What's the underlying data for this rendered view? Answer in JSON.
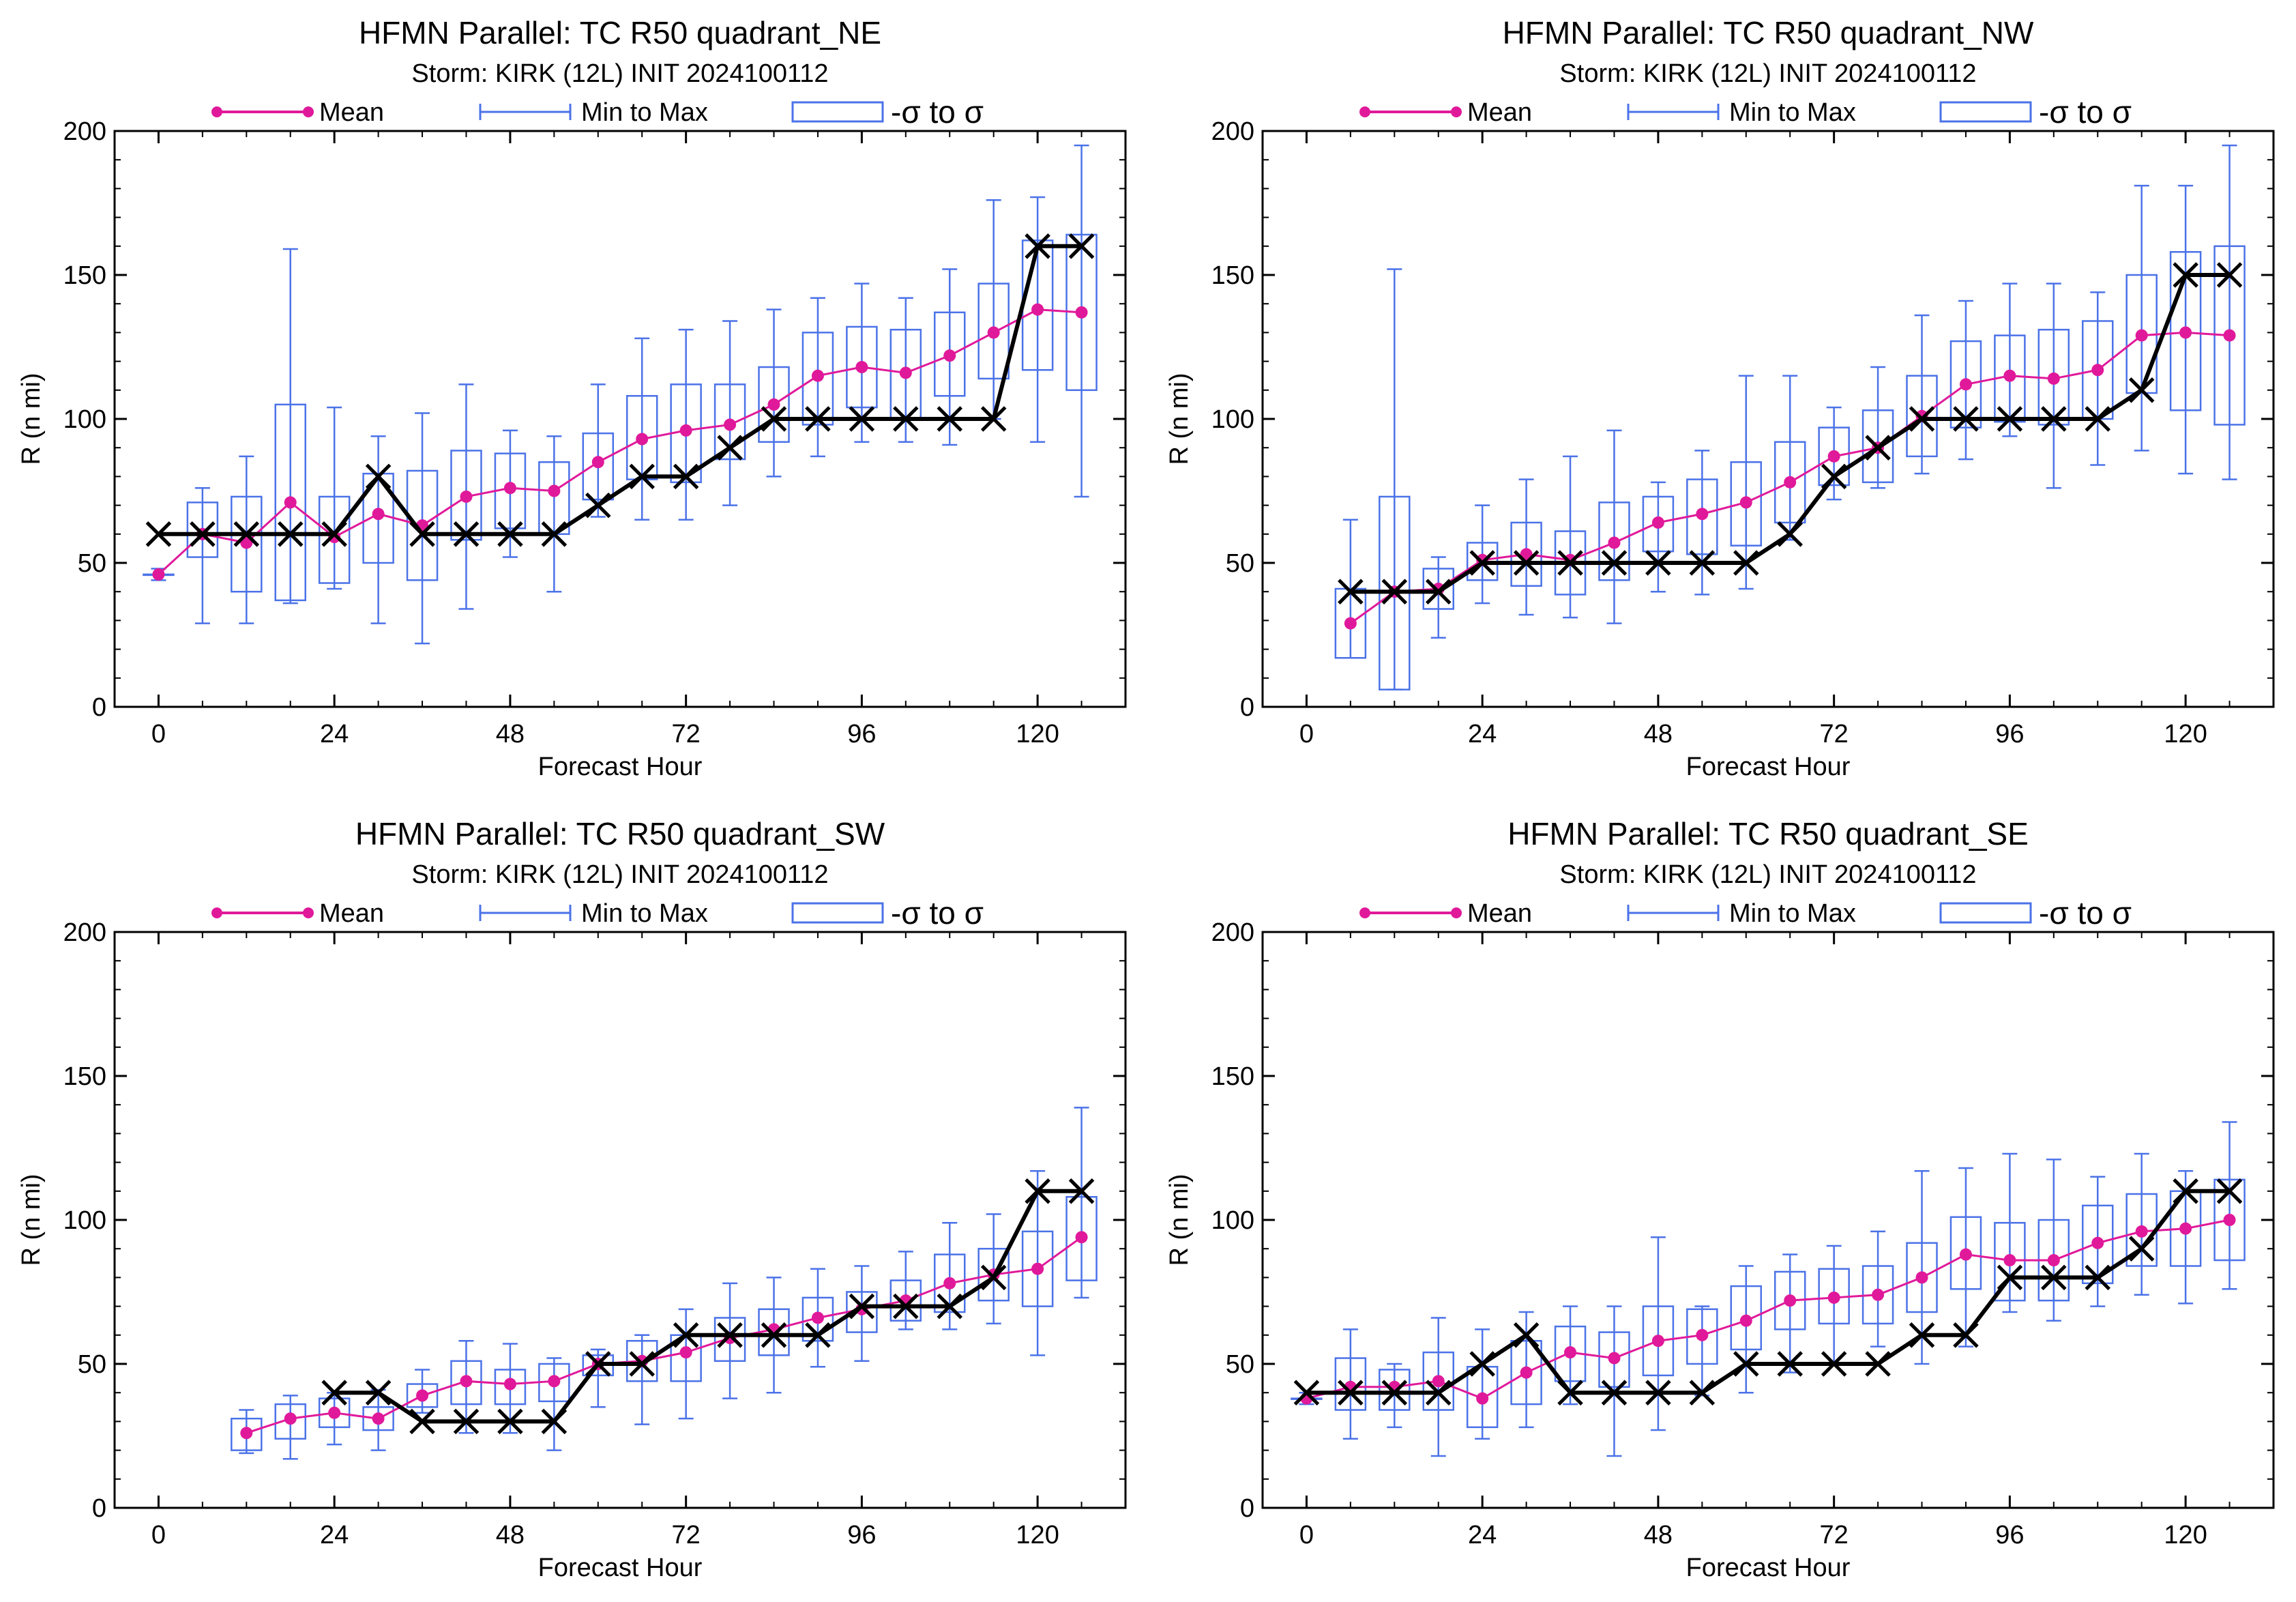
{
  "chart_data": [
    {
      "type": "box",
      "title": "HFMN Parallel: TC  R50 quadrant_NE",
      "subtitle": "Storm: KIRK (12L) INIT 2024100112",
      "xlabel": "Forecast Hour",
      "ylabel": "R (n mi)",
      "xlim": [
        -6,
        132
      ],
      "ylim": [
        0,
        200
      ],
      "xticks": [
        0,
        24,
        48,
        72,
        96,
        120
      ],
      "yticks": [
        0,
        50,
        100,
        150,
        200
      ],
      "legend": {
        "placement": "top",
        "mean": "Mean",
        "minmax": "Min to Max",
        "sigma": "-σ to σ"
      },
      "colors": {
        "mean": "#e0199a",
        "box": "#4b72e8",
        "best_track": "#000000"
      },
      "hours": [
        0,
        6,
        12,
        18,
        24,
        30,
        36,
        42,
        48,
        54,
        60,
        66,
        72,
        78,
        84,
        90,
        96,
        102,
        108,
        114,
        120,
        126
      ],
      "mean": [
        46,
        60,
        57,
        71,
        59,
        67,
        63,
        73,
        76,
        75,
        85,
        93,
        96,
        98,
        105,
        115,
        118,
        116,
        122,
        130,
        138,
        137
      ],
      "min": [
        44,
        29,
        29,
        36,
        41,
        29,
        22,
        34,
        52,
        40,
        66,
        65,
        65,
        70,
        80,
        87,
        92,
        92,
        91,
        100,
        92,
        73
      ],
      "max": [
        48,
        76,
        87,
        159,
        104,
        94,
        102,
        112,
        96,
        94,
        112,
        128,
        131,
        134,
        138,
        142,
        147,
        142,
        152,
        176,
        177,
        195
      ],
      "sigma_lo": [
        46,
        52,
        40,
        37,
        43,
        50,
        44,
        58,
        62,
        60,
        72,
        79,
        78,
        86,
        92,
        98,
        104,
        100,
        108,
        114,
        117,
        110
      ],
      "sigma_hi": [
        46,
        71,
        73,
        105,
        73,
        81,
        82,
        89,
        88,
        85,
        95,
        108,
        112,
        112,
        118,
        130,
        132,
        131,
        137,
        147,
        162,
        164
      ],
      "best_track_hours": [
        0,
        6,
        12,
        18,
        24,
        30,
        36,
        42,
        48,
        54,
        60,
        66,
        72,
        78,
        84,
        90,
        96,
        102,
        108,
        114,
        120,
        126
      ],
      "best_track": [
        60,
        60,
        60,
        60,
        60,
        80,
        60,
        60,
        60,
        60,
        70,
        80,
        80,
        90,
        100,
        100,
        100,
        100,
        100,
        100,
        160,
        160
      ]
    },
    {
      "type": "box",
      "title": "HFMN Parallel: TC  R50 quadrant_NW",
      "subtitle": "Storm: KIRK (12L) INIT 2024100112",
      "xlabel": "Forecast Hour",
      "ylabel": "R (n mi)",
      "xlim": [
        -6,
        132
      ],
      "ylim": [
        0,
        200
      ],
      "xticks": [
        0,
        24,
        48,
        72,
        96,
        120
      ],
      "yticks": [
        0,
        50,
        100,
        150,
        200
      ],
      "legend": {
        "placement": "top",
        "mean": "Mean",
        "minmax": "Min to Max",
        "sigma": "-σ to σ"
      },
      "colors": {
        "mean": "#e0199a",
        "box": "#4b72e8",
        "best_track": "#000000"
      },
      "hours": [
        6,
        12,
        18,
        24,
        30,
        36,
        42,
        48,
        54,
        60,
        66,
        72,
        78,
        84,
        90,
        96,
        102,
        108,
        114,
        120,
        126
      ],
      "mean": [
        29,
        40,
        41,
        51,
        53,
        51,
        57,
        64,
        67,
        71,
        78,
        87,
        90,
        101,
        112,
        115,
        114,
        117,
        129,
        130,
        129
      ],
      "min": [
        17,
        6,
        24,
        36,
        32,
        31,
        29,
        40,
        39,
        41,
        58,
        72,
        76,
        81,
        86,
        94,
        76,
        84,
        89,
        81,
        79
      ],
      "max": [
        65,
        152,
        52,
        70,
        79,
        87,
        96,
        78,
        89,
        115,
        115,
        104,
        118,
        136,
        141,
        147,
        147,
        144,
        181,
        181,
        195
      ],
      "sigma_lo": [
        17,
        6,
        34,
        44,
        42,
        39,
        44,
        54,
        53,
        56,
        64,
        77,
        78,
        87,
        97,
        99,
        98,
        100,
        109,
        103,
        98
      ],
      "sigma_hi": [
        41,
        73,
        48,
        57,
        64,
        61,
        71,
        73,
        79,
        85,
        92,
        97,
        103,
        115,
        127,
        129,
        131,
        134,
        150,
        158,
        160
      ],
      "best_track_hours": [
        6,
        12,
        18,
        24,
        30,
        36,
        42,
        48,
        54,
        60,
        66,
        72,
        78,
        84,
        90,
        96,
        102,
        108,
        114,
        120,
        126
      ],
      "best_track": [
        40,
        40,
        40,
        50,
        50,
        50,
        50,
        50,
        50,
        50,
        60,
        80,
        90,
        100,
        100,
        100,
        100,
        100,
        110,
        150,
        150
      ]
    },
    {
      "type": "box",
      "title": "HFMN Parallel: TC  R50 quadrant_SW",
      "subtitle": "Storm: KIRK (12L) INIT 2024100112",
      "xlabel": "Forecast Hour",
      "ylabel": "R (n mi)",
      "xlim": [
        -6,
        132
      ],
      "ylim": [
        0,
        200
      ],
      "xticks": [
        0,
        24,
        48,
        72,
        96,
        120
      ],
      "yticks": [
        0,
        50,
        100,
        150,
        200
      ],
      "legend": {
        "placement": "top",
        "mean": "Mean",
        "minmax": "Min to Max",
        "sigma": "-σ to σ"
      },
      "colors": {
        "mean": "#e0199a",
        "box": "#4b72e8",
        "best_track": "#000000"
      },
      "hours": [
        12,
        18,
        24,
        30,
        36,
        42,
        48,
        54,
        60,
        66,
        72,
        78,
        84,
        90,
        96,
        102,
        108,
        114,
        120,
        126
      ],
      "mean": [
        26,
        31,
        33,
        31,
        39,
        44,
        43,
        44,
        50,
        51,
        54,
        59,
        62,
        66,
        69,
        72,
        78,
        81,
        83,
        94
      ],
      "min": [
        19,
        17,
        22,
        20,
        33,
        26,
        26,
        20,
        35,
        29,
        31,
        38,
        40,
        49,
        51,
        62,
        62,
        64,
        53,
        73
      ],
      "max": [
        34,
        39,
        40,
        41,
        48,
        58,
        57,
        52,
        55,
        60,
        69,
        78,
        80,
        83,
        84,
        89,
        99,
        102,
        117,
        139
      ],
      "sigma_lo": [
        20,
        24,
        28,
        27,
        35,
        36,
        36,
        37,
        46,
        44,
        44,
        51,
        53,
        58,
        61,
        65,
        68,
        72,
        70,
        79
      ],
      "sigma_hi": [
        31,
        36,
        38,
        35,
        43,
        51,
        48,
        50,
        53,
        58,
        60,
        66,
        69,
        73,
        75,
        79,
        88,
        90,
        96,
        108
      ],
      "best_track_hours": [
        24,
        30,
        36,
        42,
        48,
        54,
        60,
        66,
        72,
        78,
        84,
        90,
        96,
        102,
        108,
        114,
        120,
        126
      ],
      "best_track": [
        40,
        40,
        30,
        30,
        30,
        30,
        50,
        50,
        60,
        60,
        60,
        60,
        70,
        70,
        70,
        80,
        110,
        110
      ]
    },
    {
      "type": "box",
      "title": "HFMN Parallel: TC  R50 quadrant_SE",
      "subtitle": "Storm: KIRK (12L) INIT 2024100112",
      "xlabel": "Forecast Hour",
      "ylabel": "R (n mi)",
      "xlim": [
        -6,
        132
      ],
      "ylim": [
        0,
        200
      ],
      "xticks": [
        0,
        24,
        48,
        72,
        96,
        120
      ],
      "yticks": [
        0,
        50,
        100,
        150,
        200
      ],
      "legend": {
        "placement": "top",
        "mean": "Mean",
        "minmax": "Min to Max",
        "sigma": "-σ to σ"
      },
      "colors": {
        "mean": "#e0199a",
        "box": "#4b72e8",
        "best_track": "#000000"
      },
      "hours": [
        0,
        6,
        12,
        18,
        24,
        30,
        36,
        42,
        48,
        54,
        60,
        66,
        72,
        78,
        84,
        90,
        96,
        102,
        108,
        114,
        120,
        126
      ],
      "mean": [
        38,
        42,
        42,
        44,
        38,
        47,
        54,
        52,
        58,
        60,
        65,
        72,
        73,
        74,
        80,
        88,
        86,
        86,
        92,
        96,
        97,
        100
      ],
      "min": [
        36,
        24,
        28,
        18,
        24,
        28,
        36,
        18,
        27,
        39,
        40,
        47,
        50,
        56,
        50,
        56,
        68,
        65,
        70,
        74,
        71,
        76
      ],
      "max": [
        40,
        62,
        50,
        66,
        62,
        68,
        70,
        70,
        94,
        70,
        84,
        88,
        91,
        96,
        117,
        118,
        123,
        121,
        115,
        123,
        117,
        134
      ],
      "sigma_lo": [
        38,
        34,
        34,
        34,
        28,
        36,
        44,
        42,
        46,
        50,
        55,
        62,
        64,
        64,
        68,
        76,
        72,
        72,
        78,
        84,
        84,
        86
      ],
      "sigma_hi": [
        38,
        52,
        48,
        54,
        49,
        58,
        63,
        61,
        70,
        69,
        77,
        82,
        83,
        84,
        92,
        101,
        99,
        100,
        105,
        109,
        110,
        114
      ],
      "best_track_hours": [
        0,
        6,
        12,
        18,
        24,
        30,
        36,
        42,
        48,
        54,
        60,
        66,
        72,
        78,
        84,
        90,
        96,
        102,
        108,
        114,
        120,
        126
      ],
      "best_track": [
        40,
        40,
        40,
        40,
        50,
        60,
        40,
        40,
        40,
        40,
        50,
        50,
        50,
        50,
        60,
        60,
        80,
        80,
        80,
        90,
        110,
        110
      ]
    }
  ]
}
